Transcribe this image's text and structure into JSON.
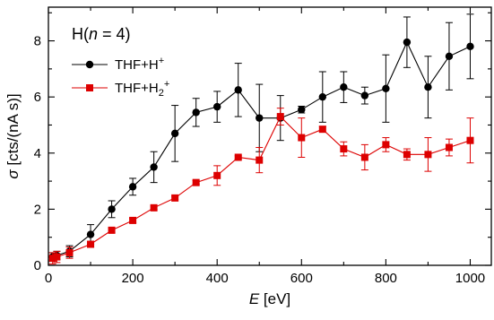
{
  "chart_data": {
    "type": "line",
    "title": "",
    "panel_label": {
      "prefix": "H(",
      "var": "n",
      "rest": " = 4)"
    },
    "xlabel": {
      "symbol": "E",
      "unit": " [eV]"
    },
    "ylabel": {
      "symbol": "σ",
      "unit": " [cts/(nA s)]"
    },
    "xlim": [
      0,
      1050
    ],
    "ylim": [
      0,
      9.2
    ],
    "xticks": [
      0,
      200,
      400,
      600,
      800,
      1000
    ],
    "yticks": [
      0,
      2,
      4,
      6,
      8
    ],
    "grid": false,
    "legend_position": "top-left",
    "series": [
      {
        "name_base": "THF+H",
        "name_sub": "",
        "name_sup": "+",
        "color": "#000000",
        "marker": "circle",
        "x": [
          10,
          20,
          50,
          100,
          150,
          200,
          250,
          300,
          350,
          400,
          450,
          500,
          550,
          600,
          650,
          700,
          750,
          800,
          850,
          900,
          950,
          1000
        ],
        "y": [
          0.3,
          0.35,
          0.5,
          1.1,
          2.0,
          2.8,
          3.5,
          4.7,
          5.45,
          5.65,
          6.25,
          5.25,
          5.25,
          5.55,
          6.0,
          6.35,
          6.05,
          6.3,
          7.95,
          6.35,
          7.45,
          7.8
        ],
        "err": [
          0.15,
          0.15,
          0.2,
          0.35,
          0.3,
          0.3,
          0.55,
          1.0,
          0.5,
          0.55,
          0.95,
          1.2,
          0.8,
          0.12,
          0.9,
          0.55,
          0.3,
          1.2,
          0.9,
          1.1,
          1.2,
          1.15
        ]
      },
      {
        "name_base": "THF+H",
        "name_sub": "2",
        "name_sup": "+",
        "color": "#dd0000",
        "marker": "square",
        "x": [
          10,
          20,
          50,
          100,
          150,
          200,
          250,
          300,
          350,
          400,
          450,
          500,
          550,
          600,
          650,
          700,
          750,
          800,
          850,
          900,
          950,
          1000
        ],
        "y": [
          0.25,
          0.3,
          0.45,
          0.75,
          1.25,
          1.6,
          2.05,
          2.4,
          2.95,
          3.2,
          3.85,
          3.75,
          5.3,
          4.55,
          4.85,
          4.15,
          3.85,
          4.3,
          3.95,
          3.95,
          4.2,
          4.45
        ],
        "err": [
          0.2,
          0.2,
          0.2,
          0.1,
          0.08,
          0.08,
          0.06,
          0.06,
          0.07,
          0.35,
          0.05,
          0.45,
          0.3,
          0.7,
          0.1,
          0.25,
          0.45,
          0.25,
          0.2,
          0.6,
          0.3,
          0.8
        ]
      }
    ]
  }
}
